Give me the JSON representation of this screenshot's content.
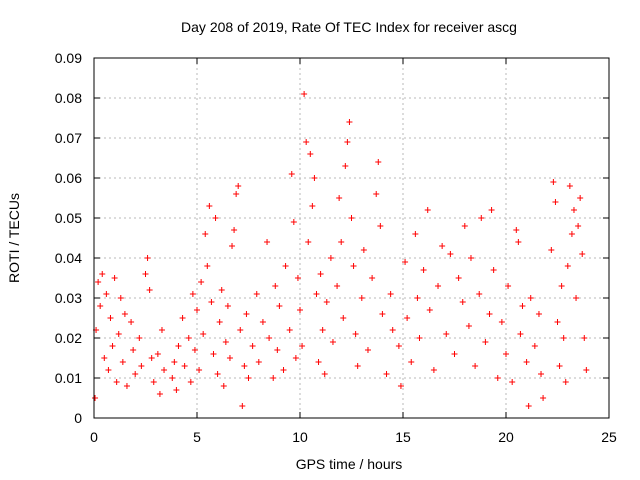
{
  "chart_data": {
    "type": "scatter",
    "title": "Day 208 of 2019, Rate Of TEC Index for receiver ascg",
    "xlabel": "GPS time / hours",
    "ylabel": "ROTI / TECUs",
    "xlim": [
      0,
      25
    ],
    "ylim": [
      0,
      0.09
    ],
    "xticks": [
      "0",
      "5",
      "10",
      "15",
      "20",
      "25"
    ],
    "yticks": [
      "0",
      "0.01",
      "0.02",
      "0.03",
      "0.04",
      "0.05",
      "0.06",
      "0.07",
      "0.08",
      "0.09"
    ],
    "grid": true,
    "marker": "+",
    "color": "#ff0000",
    "series": [
      {
        "points": [
          [
            0.05,
            0.005
          ],
          [
            0.1,
            0.022
          ],
          [
            0.2,
            0.034
          ],
          [
            0.3,
            0.028
          ],
          [
            0.4,
            0.036
          ],
          [
            0.5,
            0.015
          ],
          [
            0.6,
            0.031
          ],
          [
            0.7,
            0.012
          ],
          [
            0.8,
            0.025
          ],
          [
            0.9,
            0.018
          ],
          [
            1.0,
            0.035
          ],
          [
            1.1,
            0.009
          ],
          [
            1.2,
            0.021
          ],
          [
            1.3,
            0.03
          ],
          [
            1.4,
            0.014
          ],
          [
            1.5,
            0.026
          ],
          [
            1.6,
            0.008
          ],
          [
            1.8,
            0.024
          ],
          [
            1.9,
            0.017
          ],
          [
            2.0,
            0.011
          ],
          [
            2.2,
            0.02
          ],
          [
            2.3,
            0.013
          ],
          [
            2.5,
            0.036
          ],
          [
            2.6,
            0.04
          ],
          [
            2.7,
            0.032
          ],
          [
            2.8,
            0.015
          ],
          [
            2.9,
            0.009
          ],
          [
            3.1,
            0.016
          ],
          [
            3.2,
            0.006
          ],
          [
            3.3,
            0.022
          ],
          [
            3.4,
            0.012
          ],
          [
            3.8,
            0.01
          ],
          [
            3.9,
            0.014
          ],
          [
            4.0,
            0.007
          ],
          [
            4.1,
            0.018
          ],
          [
            4.3,
            0.025
          ],
          [
            4.4,
            0.013
          ],
          [
            4.6,
            0.02
          ],
          [
            4.7,
            0.009
          ],
          [
            4.8,
            0.031
          ],
          [
            4.9,
            0.017
          ],
          [
            5.0,
            0.027
          ],
          [
            5.1,
            0.012
          ],
          [
            5.2,
            0.034
          ],
          [
            5.3,
            0.021
          ],
          [
            5.4,
            0.046
          ],
          [
            5.5,
            0.038
          ],
          [
            5.6,
            0.053
          ],
          [
            5.7,
            0.029
          ],
          [
            5.8,
            0.016
          ],
          [
            5.9,
            0.05
          ],
          [
            6.0,
            0.011
          ],
          [
            6.1,
            0.024
          ],
          [
            6.2,
            0.032
          ],
          [
            6.3,
            0.008
          ],
          [
            6.4,
            0.019
          ],
          [
            6.5,
            0.028
          ],
          [
            6.6,
            0.015
          ],
          [
            6.7,
            0.043
          ],
          [
            6.8,
            0.047
          ],
          [
            6.9,
            0.056
          ],
          [
            7.0,
            0.058
          ],
          [
            7.1,
            0.022
          ],
          [
            7.2,
            0.003
          ],
          [
            7.3,
            0.013
          ],
          [
            7.4,
            0.026
          ],
          [
            7.5,
            0.01
          ],
          [
            7.7,
            0.018
          ],
          [
            7.9,
            0.031
          ],
          [
            8.0,
            0.014
          ],
          [
            8.2,
            0.024
          ],
          [
            8.4,
            0.044
          ],
          [
            8.5,
            0.02
          ],
          [
            8.7,
            0.01
          ],
          [
            8.8,
            0.033
          ],
          [
            8.9,
            0.017
          ],
          [
            9.0,
            0.028
          ],
          [
            9.2,
            0.012
          ],
          [
            9.3,
            0.038
          ],
          [
            9.5,
            0.022
          ],
          [
            9.6,
            0.061
          ],
          [
            9.7,
            0.049
          ],
          [
            9.8,
            0.015
          ],
          [
            9.9,
            0.035
          ],
          [
            10.0,
            0.027
          ],
          [
            10.1,
            0.018
          ],
          [
            10.2,
            0.081
          ],
          [
            10.3,
            0.069
          ],
          [
            10.4,
            0.044
          ],
          [
            10.5,
            0.066
          ],
          [
            10.6,
            0.053
          ],
          [
            10.7,
            0.06
          ],
          [
            10.8,
            0.031
          ],
          [
            10.9,
            0.014
          ],
          [
            11.0,
            0.036
          ],
          [
            11.1,
            0.022
          ],
          [
            11.2,
            0.011
          ],
          [
            11.3,
            0.029
          ],
          [
            11.5,
            0.04
          ],
          [
            11.6,
            0.019
          ],
          [
            11.8,
            0.033
          ],
          [
            11.9,
            0.055
          ],
          [
            12.0,
            0.044
          ],
          [
            12.1,
            0.025
          ],
          [
            12.2,
            0.063
          ],
          [
            12.3,
            0.069
          ],
          [
            12.4,
            0.074
          ],
          [
            12.5,
            0.05
          ],
          [
            12.6,
            0.038
          ],
          [
            12.7,
            0.021
          ],
          [
            12.8,
            0.013
          ],
          [
            13.0,
            0.03
          ],
          [
            13.1,
            0.042
          ],
          [
            13.3,
            0.017
          ],
          [
            13.5,
            0.035
          ],
          [
            13.7,
            0.056
          ],
          [
            13.8,
            0.064
          ],
          [
            13.9,
            0.048
          ],
          [
            14.0,
            0.026
          ],
          [
            14.2,
            0.011
          ],
          [
            14.4,
            0.031
          ],
          [
            14.5,
            0.022
          ],
          [
            14.8,
            0.018
          ],
          [
            14.9,
            0.008
          ],
          [
            15.1,
            0.039
          ],
          [
            15.2,
            0.025
          ],
          [
            15.4,
            0.014
          ],
          [
            15.6,
            0.046
          ],
          [
            15.7,
            0.03
          ],
          [
            15.8,
            0.02
          ],
          [
            16.0,
            0.037
          ],
          [
            16.2,
            0.052
          ],
          [
            16.3,
            0.027
          ],
          [
            16.5,
            0.012
          ],
          [
            16.7,
            0.033
          ],
          [
            16.9,
            0.043
          ],
          [
            17.1,
            0.021
          ],
          [
            17.3,
            0.041
          ],
          [
            17.5,
            0.016
          ],
          [
            17.7,
            0.035
          ],
          [
            17.9,
            0.029
          ],
          [
            18.0,
            0.048
          ],
          [
            18.2,
            0.023
          ],
          [
            18.3,
            0.04
          ],
          [
            18.5,
            0.013
          ],
          [
            18.7,
            0.031
          ],
          [
            18.8,
            0.05
          ],
          [
            19.0,
            0.019
          ],
          [
            19.2,
            0.026
          ],
          [
            19.3,
            0.052
          ],
          [
            19.4,
            0.037
          ],
          [
            19.6,
            0.01
          ],
          [
            19.8,
            0.024
          ],
          [
            20.0,
            0.016
          ],
          [
            20.1,
            0.033
          ],
          [
            20.3,
            0.009
          ],
          [
            20.5,
            0.047
          ],
          [
            20.6,
            0.044
          ],
          [
            20.7,
            0.021
          ],
          [
            20.8,
            0.028
          ],
          [
            21.0,
            0.014
          ],
          [
            21.1,
            0.003
          ],
          [
            21.2,
            0.03
          ],
          [
            21.4,
            0.018
          ],
          [
            21.6,
            0.026
          ],
          [
            21.7,
            0.011
          ],
          [
            21.8,
            0.005
          ],
          [
            22.2,
            0.042
          ],
          [
            22.3,
            0.059
          ],
          [
            22.4,
            0.054
          ],
          [
            22.5,
            0.024
          ],
          [
            22.6,
            0.013
          ],
          [
            22.7,
            0.033
          ],
          [
            22.8,
            0.02
          ],
          [
            22.9,
            0.009
          ],
          [
            23.0,
            0.038
          ],
          [
            23.1,
            0.058
          ],
          [
            23.2,
            0.046
          ],
          [
            23.3,
            0.052
          ],
          [
            23.4,
            0.03
          ],
          [
            23.5,
            0.048
          ],
          [
            23.6,
            0.055
          ],
          [
            23.7,
            0.041
          ],
          [
            23.8,
            0.02
          ],
          [
            23.9,
            0.012
          ]
        ]
      }
    ]
  }
}
